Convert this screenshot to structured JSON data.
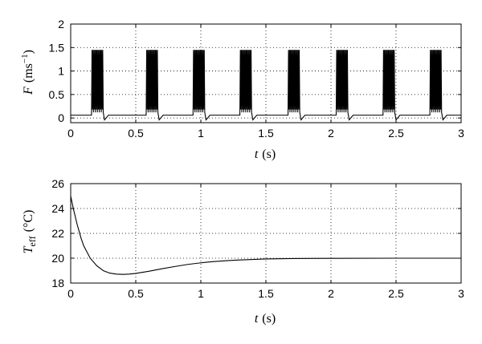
{
  "chart_data": [
    {
      "type": "line",
      "xlabel": "t (s)",
      "xlabel_var": "t",
      "xlabel_unit": "(s)",
      "ylabel_var": "F",
      "ylabel_unit": "(ms",
      "ylabel_exp": "−1",
      "ylabel_close": ")",
      "xlim": [
        0,
        3
      ],
      "ylim": [
        -0.1,
        2
      ],
      "xticks": [
        "0",
        "0.5",
        "1",
        "1.5",
        "2",
        "2.5",
        "3"
      ],
      "yticks": [
        "0",
        "0.5",
        "1",
        "1.5",
        "2"
      ],
      "grid": true,
      "baseline": 0.06,
      "burst_starts": [
        0.16,
        0.58,
        0.94,
        1.3,
        1.67,
        2.04,
        2.4,
        2.76
      ],
      "burst_duration": 0.09,
      "burst_peak": 1.45,
      "spikes_per_burst": 6
    },
    {
      "type": "line",
      "xlabel": "t (s)",
      "xlabel_var": "t",
      "xlabel_unit": "(s)",
      "ylabel_var": "T",
      "ylabel_sub": "eff",
      "ylabel_unit": "(°C)",
      "xlim": [
        0,
        3
      ],
      "ylim": [
        18,
        26
      ],
      "xticks": [
        "0",
        "0.5",
        "1",
        "1.5",
        "2",
        "2.5",
        "3"
      ],
      "yticks": [
        "18",
        "20",
        "22",
        "24",
        "26"
      ],
      "grid": true,
      "x": [
        0,
        0.02,
        0.05,
        0.08,
        0.1,
        0.15,
        0.2,
        0.25,
        0.3,
        0.35,
        0.4,
        0.45,
        0.5,
        0.6,
        0.7,
        0.8,
        0.9,
        1.0,
        1.1,
        1.2,
        1.3,
        1.4,
        1.5,
        1.7,
        2.0,
        2.5,
        3.0
      ],
      "y": [
        25.0,
        24.0,
        22.7,
        21.6,
        21.0,
        20.0,
        19.4,
        19.0,
        18.8,
        18.72,
        18.7,
        18.72,
        18.78,
        18.95,
        19.15,
        19.33,
        19.5,
        19.63,
        19.73,
        19.8,
        19.86,
        19.9,
        19.94,
        19.97,
        19.99,
        20.0,
        20.0
      ]
    }
  ]
}
